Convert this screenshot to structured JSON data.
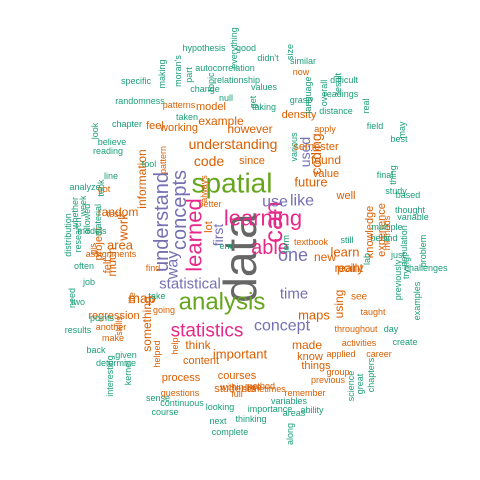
{
  "palette": {
    "green": "#1b9e77",
    "orange": "#d95f02",
    "purple": "#7570b3",
    "pink": "#e7298a",
    "lime": "#66a61e",
    "gray": "#666666"
  },
  "words": [
    {
      "text": "data",
      "color": "gray"
    },
    {
      "text": "spatial",
      "color": "lime"
    },
    {
      "text": "analysis",
      "color": "lime"
    },
    {
      "text": "can",
      "color": "pink"
    },
    {
      "text": "learning",
      "color": "pink"
    },
    {
      "text": "statistics",
      "color": "pink"
    },
    {
      "text": "learned",
      "color": "pink"
    },
    {
      "text": "able",
      "color": "pink"
    },
    {
      "text": "understand",
      "color": "purple"
    },
    {
      "text": "concepts",
      "color": "purple"
    },
    {
      "text": "concept",
      "color": "purple"
    },
    {
      "text": "one",
      "color": "purple"
    },
    {
      "text": "time",
      "color": "purple"
    },
    {
      "text": "like",
      "color": "purple"
    },
    {
      "text": "use",
      "color": "purple"
    },
    {
      "text": "way",
      "color": "purple"
    },
    {
      "text": "statistical",
      "color": "purple"
    },
    {
      "text": "first",
      "color": "purple"
    },
    {
      "text": "used",
      "color": "purple"
    },
    {
      "text": "coding",
      "color": "orange"
    },
    {
      "text": "understanding",
      "color": "orange"
    },
    {
      "text": "code",
      "color": "orange"
    },
    {
      "text": "future",
      "color": "orange"
    },
    {
      "text": "work",
      "color": "orange"
    },
    {
      "text": "map",
      "color": "orange"
    },
    {
      "text": "maps",
      "color": "orange"
    },
    {
      "text": "learn",
      "color": "orange"
    },
    {
      "text": "important",
      "color": "orange"
    },
    {
      "text": "made",
      "color": "orange"
    },
    {
      "text": "think",
      "color": "orange"
    },
    {
      "text": "area",
      "color": "orange"
    },
    {
      "text": "information",
      "color": "orange"
    },
    {
      "text": "much",
      "color": "orange"
    },
    {
      "text": "random",
      "color": "orange"
    },
    {
      "text": "point",
      "color": "orange"
    },
    {
      "text": "found",
      "color": "orange"
    },
    {
      "text": "however",
      "color": "orange"
    },
    {
      "text": "example",
      "color": "orange"
    },
    {
      "text": "something",
      "color": "orange"
    },
    {
      "text": "using",
      "color": "orange"
    },
    {
      "text": "new",
      "color": "orange"
    },
    {
      "text": "really",
      "color": "orange"
    },
    {
      "text": "value",
      "color": "orange"
    },
    {
      "text": "well",
      "color": "orange"
    },
    {
      "text": "semester",
      "color": "orange"
    },
    {
      "text": "courses",
      "color": "orange"
    },
    {
      "text": "students",
      "color": "orange"
    },
    {
      "text": "things",
      "color": "orange"
    },
    {
      "text": "process",
      "color": "orange"
    },
    {
      "text": "content",
      "color": "orange"
    },
    {
      "text": "regression",
      "color": "orange"
    },
    {
      "text": "knowledge",
      "color": "orange"
    },
    {
      "text": "experience",
      "color": "orange"
    },
    {
      "text": "working",
      "color": "orange"
    },
    {
      "text": "density",
      "color": "orange"
    },
    {
      "text": "model",
      "color": "orange"
    },
    {
      "text": "since",
      "color": "orange"
    },
    {
      "text": "lot",
      "color": "orange"
    },
    {
      "text": "know",
      "color": "orange"
    },
    {
      "text": "feel",
      "color": "orange"
    },
    {
      "text": "felt",
      "color": "orange"
    },
    {
      "text": "project",
      "color": "orange"
    },
    {
      "text": "skills",
      "color": "orange"
    },
    {
      "text": "see",
      "color": "orange"
    },
    {
      "text": "taught",
      "color": "orange"
    },
    {
      "text": "activities",
      "color": "orange"
    },
    {
      "text": "throughout",
      "color": "orange"
    },
    {
      "text": "apply",
      "color": "orange"
    },
    {
      "text": "helped",
      "color": "orange"
    },
    {
      "text": "methods",
      "color": "orange"
    },
    {
      "text": "textbook",
      "color": "orange"
    },
    {
      "text": "questions",
      "color": "orange"
    },
    {
      "text": "group",
      "color": "orange"
    },
    {
      "text": "method",
      "color": "orange"
    },
    {
      "text": "remember",
      "color": "orange"
    },
    {
      "text": "applied",
      "color": "orange"
    },
    {
      "text": "career",
      "color": "orange"
    },
    {
      "text": "previous",
      "color": "orange"
    },
    {
      "text": "within",
      "color": "orange"
    },
    {
      "text": "sometimes",
      "color": "orange"
    },
    {
      "text": "use",
      "color": "orange"
    },
    {
      "text": "full",
      "color": "orange"
    },
    {
      "text": "assignments",
      "color": "orange"
    },
    {
      "text": "test",
      "color": "orange"
    },
    {
      "text": "gis",
      "color": "orange"
    },
    {
      "text": "another",
      "color": "orange"
    },
    {
      "text": "make",
      "color": "orange"
    },
    {
      "text": "going",
      "color": "orange"
    },
    {
      "text": "life",
      "color": "orange"
    },
    {
      "text": "find",
      "color": "orange"
    },
    {
      "text": "help",
      "color": "orange"
    },
    {
      "text": "got",
      "color": "orange"
    },
    {
      "text": "patterns",
      "color": "orange"
    },
    {
      "text": "pattern",
      "color": "orange"
    },
    {
      "text": "always",
      "color": "orange"
    },
    {
      "text": "better",
      "color": "orange"
    },
    {
      "text": "null",
      "color": "green"
    },
    {
      "text": "values",
      "color": "green"
    },
    {
      "text": "taking",
      "color": "green"
    },
    {
      "text": "now",
      "color": "orange"
    },
    {
      "text": "relationship",
      "color": "green"
    },
    {
      "text": "autocorrelation",
      "color": "green"
    },
    {
      "text": "didn't",
      "color": "green"
    },
    {
      "text": "good",
      "color": "green"
    },
    {
      "text": "everything",
      "color": "green"
    },
    {
      "text": "hypothesis",
      "color": "green"
    },
    {
      "text": "size",
      "color": "green"
    },
    {
      "text": "similar",
      "color": "green"
    },
    {
      "text": "topic",
      "color": "green"
    },
    {
      "text": "change",
      "color": "green"
    },
    {
      "text": "moran's",
      "color": "green"
    },
    {
      "text": "part",
      "color": "green"
    },
    {
      "text": "making",
      "color": "green"
    },
    {
      "text": "specific",
      "color": "green"
    },
    {
      "text": "randomness",
      "color": "green"
    },
    {
      "text": "taken",
      "color": "green"
    },
    {
      "text": "chapter",
      "color": "green"
    },
    {
      "text": "look",
      "color": "green"
    },
    {
      "text": "believe",
      "color": "green"
    },
    {
      "text": "reading",
      "color": "green"
    },
    {
      "text": "line",
      "color": "green"
    },
    {
      "text": "analyze",
      "color": "green"
    },
    {
      "text": "took",
      "color": "green"
    },
    {
      "text": "whether",
      "color": "green"
    },
    {
      "text": "week",
      "color": "green"
    },
    {
      "text": "distribution",
      "color": "green"
    },
    {
      "text": "research",
      "color": "green"
    },
    {
      "text": "allowed",
      "color": "green"
    },
    {
      "text": "material",
      "color": "green"
    },
    {
      "text": "models",
      "color": "green"
    },
    {
      "text": "often",
      "color": "green"
    },
    {
      "text": "job",
      "color": "green"
    },
    {
      "text": "need",
      "color": "green"
    },
    {
      "text": "two",
      "color": "green"
    },
    {
      "text": "points",
      "color": "green"
    },
    {
      "text": "results",
      "color": "green"
    },
    {
      "text": "back",
      "color": "green"
    },
    {
      "text": "given",
      "color": "green"
    },
    {
      "text": "interesting",
      "color": "green"
    },
    {
      "text": "determine",
      "color": "green"
    },
    {
      "text": "kernel",
      "color": "green"
    },
    {
      "text": "course",
      "color": "green"
    },
    {
      "text": "sense",
      "color": "green"
    },
    {
      "text": "continuous",
      "color": "green"
    },
    {
      "text": "looking",
      "color": "green"
    },
    {
      "text": "next",
      "color": "green"
    },
    {
      "text": "complete",
      "color": "green"
    },
    {
      "text": "thinking",
      "color": "green"
    },
    {
      "text": "importance",
      "color": "green"
    },
    {
      "text": "areas",
      "color": "green"
    },
    {
      "text": "variables",
      "color": "green"
    },
    {
      "text": "ability",
      "color": "green"
    },
    {
      "text": "science",
      "color": "green"
    },
    {
      "text": "great",
      "color": "green"
    },
    {
      "text": "chapters",
      "color": "green"
    },
    {
      "text": "along",
      "color": "green"
    },
    {
      "text": "create",
      "color": "green"
    },
    {
      "text": "day",
      "color": "green"
    },
    {
      "text": "examples",
      "color": "green"
    },
    {
      "text": "challenges",
      "color": "green"
    },
    {
      "text": "previously",
      "color": "green"
    },
    {
      "text": "trying",
      "color": "green"
    },
    {
      "text": "population",
      "color": "green"
    },
    {
      "text": "thought",
      "color": "green"
    },
    {
      "text": "problem",
      "color": "green"
    },
    {
      "text": "variable",
      "color": "green"
    },
    {
      "text": "based",
      "color": "green"
    },
    {
      "text": "behind",
      "color": "green"
    },
    {
      "text": "multiple",
      "color": "green"
    },
    {
      "text": "study",
      "color": "green"
    },
    {
      "text": "final",
      "color": "green"
    },
    {
      "text": "best",
      "color": "green"
    },
    {
      "text": "may",
      "color": "green"
    },
    {
      "text": "real",
      "color": "green"
    },
    {
      "text": "field",
      "color": "green"
    },
    {
      "text": "distance",
      "color": "green"
    },
    {
      "text": "result",
      "color": "green"
    },
    {
      "text": "readings",
      "color": "green"
    },
    {
      "text": "overall",
      "color": "green"
    },
    {
      "text": "difficult",
      "color": "green"
    },
    {
      "text": "language",
      "color": "green"
    },
    {
      "text": "grasp",
      "color": "green"
    },
    {
      "text": "various",
      "color": "green"
    },
    {
      "text": "thing",
      "color": "green"
    },
    {
      "text": "still",
      "color": "green"
    },
    {
      "text": "term",
      "color": "green"
    },
    {
      "text": "take",
      "color": "green"
    },
    {
      "text": "end",
      "color": "green"
    },
    {
      "text": "tool",
      "color": "green"
    },
    {
      "text": "get",
      "color": "green"
    },
    {
      "text": "lab",
      "color": "green"
    },
    {
      "text": "just",
      "color": "green"
    },
    {
      "text": "able",
      "color": "green"
    },
    {
      "text": "ve",
      "color": "green"
    }
  ]
}
